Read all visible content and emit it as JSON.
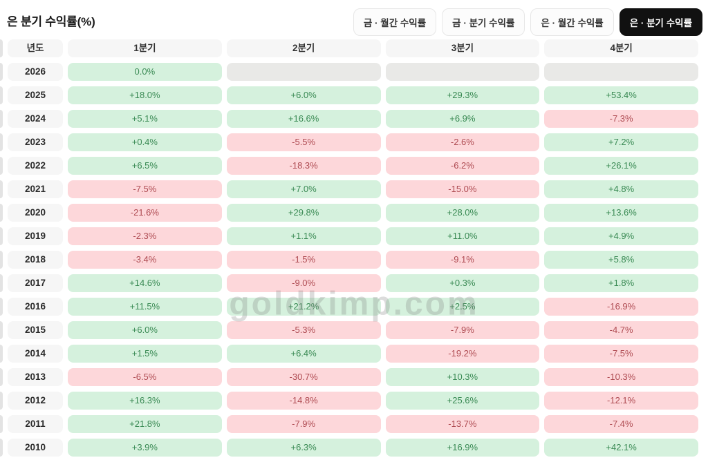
{
  "header": {
    "title": "은 분기 수익률(%)",
    "buttons": [
      {
        "name": "tab-gold-monthly-returns",
        "label": "금 · 월간 수익률",
        "active": false
      },
      {
        "name": "tab-gold-quarterly-returns",
        "label": "금 · 분기 수익률",
        "active": false
      },
      {
        "name": "tab-silver-monthly-returns",
        "label": "은 · 월간 수익률",
        "active": false
      },
      {
        "name": "tab-silver-quarterly-returns",
        "label": "은 · 분기 수익률",
        "active": true
      }
    ]
  },
  "watermark": "goldkimp.com",
  "colors": {
    "positive_bg": "#d5f1dd",
    "positive_text": "#3a8a54",
    "negative_bg": "#fdd7da",
    "negative_text": "#ae4a51",
    "empty_bg": "#e9e9e7",
    "header_bg": "#f6f6f6",
    "active_button_bg": "#111111",
    "active_button_text": "#ffffff"
  },
  "chart_data": {
    "type": "heatmap",
    "title": "은 분기 수익률(%)",
    "columns": [
      "년도",
      "1분기",
      "2분기",
      "3분기",
      "4분기"
    ],
    "color_rules": {
      "positive": "green",
      "negative": "red",
      "no_data": "gray"
    },
    "rows": [
      {
        "year": "2026",
        "values": [
          "0.0%",
          null,
          null,
          null
        ]
      },
      {
        "year": "2025",
        "values": [
          "+18.0%",
          "+6.0%",
          "+29.3%",
          "+53.4%"
        ]
      },
      {
        "year": "2024",
        "values": [
          "+5.1%",
          "+16.6%",
          "+6.9%",
          "-7.3%"
        ]
      },
      {
        "year": "2023",
        "values": [
          "+0.4%",
          "-5.5%",
          "-2.6%",
          "+7.2%"
        ]
      },
      {
        "year": "2022",
        "values": [
          "+6.5%",
          "-18.3%",
          "-6.2%",
          "+26.1%"
        ]
      },
      {
        "year": "2021",
        "values": [
          "-7.5%",
          "+7.0%",
          "-15.0%",
          "+4.8%"
        ]
      },
      {
        "year": "2020",
        "values": [
          "-21.6%",
          "+29.8%",
          "+28.0%",
          "+13.6%"
        ]
      },
      {
        "year": "2019",
        "values": [
          "-2.3%",
          "+1.1%",
          "+11.0%",
          "+4.9%"
        ]
      },
      {
        "year": "2018",
        "values": [
          "-3.4%",
          "-1.5%",
          "-9.1%",
          "+5.8%"
        ]
      },
      {
        "year": "2017",
        "values": [
          "+14.6%",
          "-9.0%",
          "+0.3%",
          "+1.8%"
        ]
      },
      {
        "year": "2016",
        "values": [
          "+11.5%",
          "+21.2%",
          "+2.5%",
          "-16.9%"
        ]
      },
      {
        "year": "2015",
        "values": [
          "+6.0%",
          "-5.3%",
          "-7.9%",
          "-4.7%"
        ]
      },
      {
        "year": "2014",
        "values": [
          "+1.5%",
          "+6.4%",
          "-19.2%",
          "-7.5%"
        ]
      },
      {
        "year": "2013",
        "values": [
          "-6.5%",
          "-30.7%",
          "+10.3%",
          "-10.3%"
        ]
      },
      {
        "year": "2012",
        "values": [
          "+16.3%",
          "-14.8%",
          "+25.6%",
          "-12.1%"
        ]
      },
      {
        "year": "2011",
        "values": [
          "+21.8%",
          "-7.9%",
          "-13.7%",
          "-7.4%"
        ]
      },
      {
        "year": "2010",
        "values": [
          "+3.9%",
          "+6.3%",
          "+16.9%",
          "+42.1%"
        ]
      }
    ]
  }
}
